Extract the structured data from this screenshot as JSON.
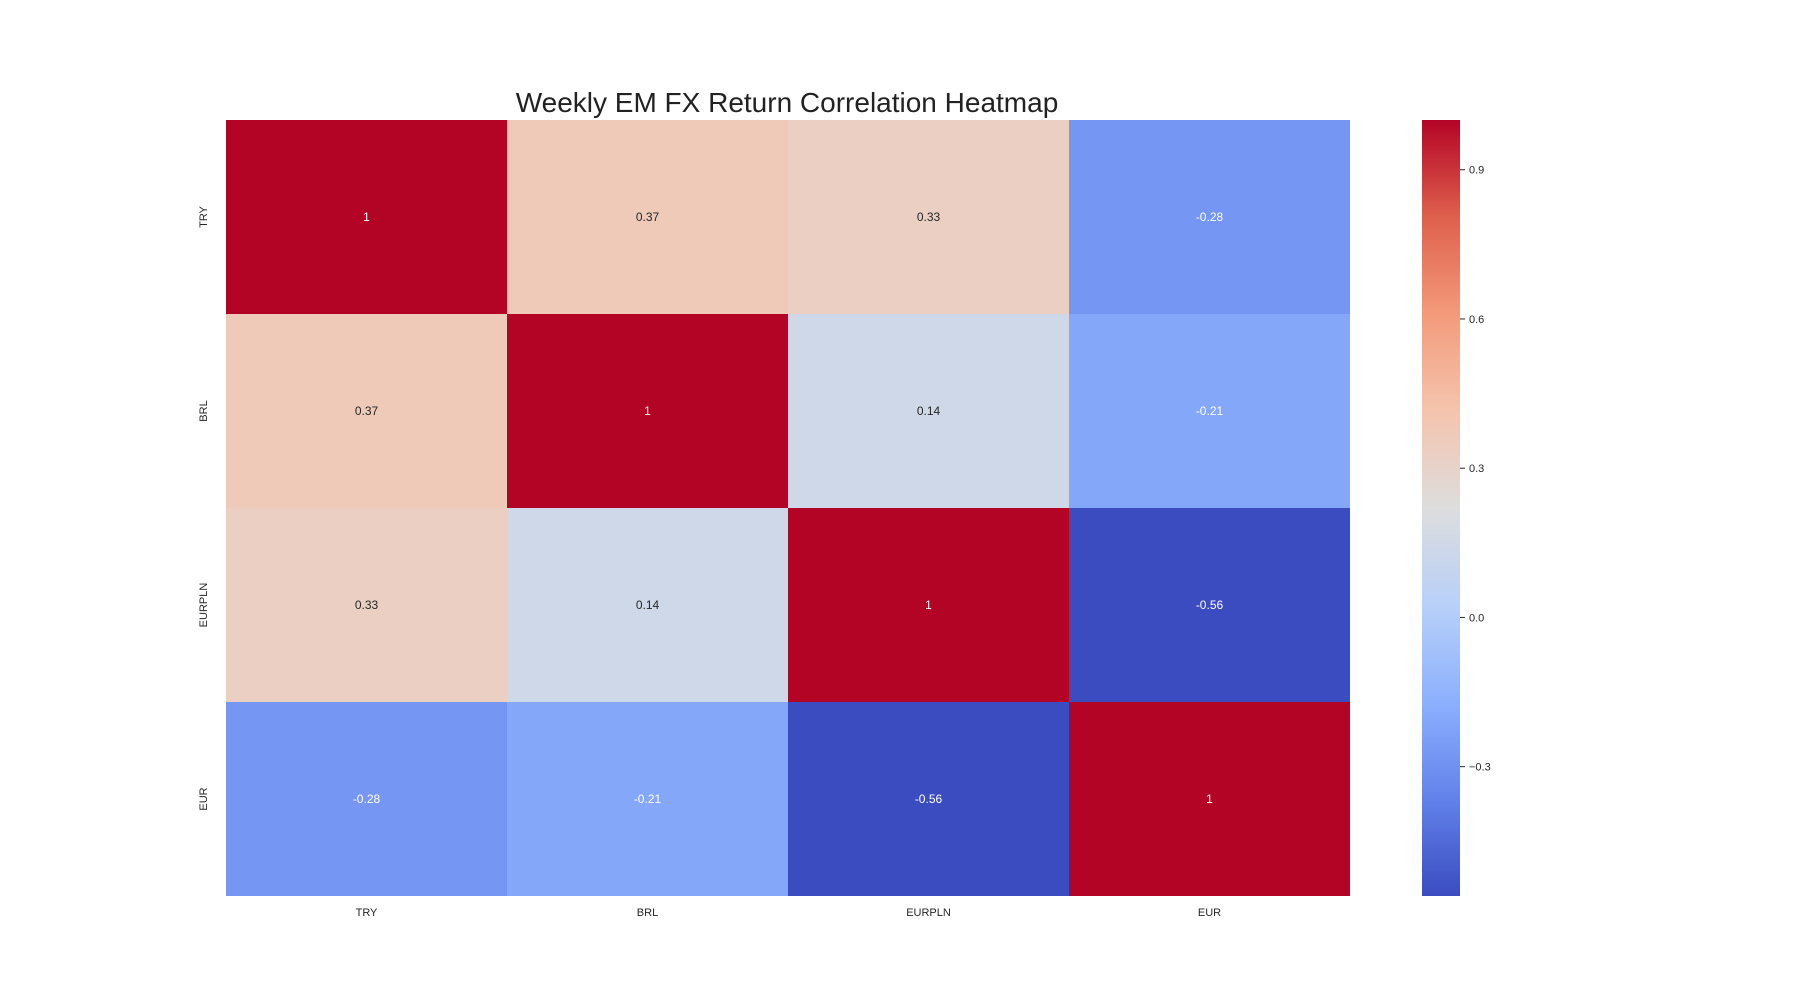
{
  "chart_data": {
    "type": "heatmap",
    "title": "Weekly EM FX Return Correlation Heatmap",
    "x_categories": [
      "TRY",
      "BRL",
      "EURPLN",
      "EUR"
    ],
    "y_categories": [
      "TRY",
      "BRL",
      "EURPLN",
      "EUR"
    ],
    "values": [
      [
        1,
        0.37,
        0.33,
        -0.28
      ],
      [
        0.37,
        1,
        0.14,
        -0.21
      ],
      [
        0.33,
        0.14,
        1,
        -0.56
      ],
      [
        -0.28,
        -0.21,
        -0.56,
        1
      ]
    ],
    "annotations": [
      [
        "1",
        "0.37",
        "0.33",
        "-0.28"
      ],
      [
        "0.37",
        "1",
        "0.14",
        "-0.21"
      ],
      [
        "0.33",
        "0.14",
        "1",
        "-0.56"
      ],
      [
        "-0.28",
        "-0.21",
        "-0.56",
        "1"
      ]
    ],
    "colormap": "coolwarm",
    "colorbar": {
      "vmin": -0.56,
      "vmax": 1,
      "ticks": [
        0.9,
        0.6,
        0.3,
        0.0,
        -0.3
      ],
      "tick_labels": [
        "0.9",
        "0.6",
        "0.3",
        "0.0",
        "−0.3"
      ]
    },
    "grid": false,
    "legend": "colorbar-right"
  }
}
